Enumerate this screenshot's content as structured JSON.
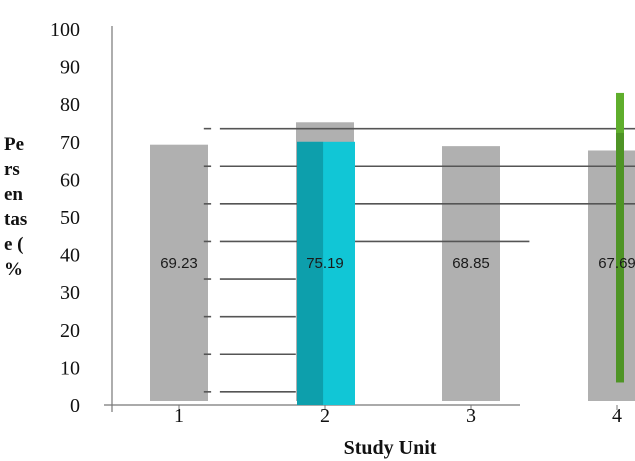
{
  "chart_data": {
    "type": "bar",
    "categories": [
      "1",
      "2",
      "3",
      "4"
    ],
    "values": [
      69.23,
      75.19,
      68.85,
      67.69
    ],
    "value_labels": [
      "69.23",
      "75.19",
      "68.85",
      "67.69"
    ],
    "xlabel": "Study Unit",
    "ylabel_lines": [
      "Pe",
      "rs",
      "en",
      "tas",
      "e (",
      "%"
    ],
    "ylim": [
      0,
      100
    ],
    "yticks": [
      "0",
      "10",
      "20",
      "30",
      "40",
      "50",
      "60",
      "70",
      "80",
      "90",
      "100"
    ],
    "grid": false,
    "bar_color": "#a9a9a9",
    "overlays": {
      "cyan_bar": {
        "category": "2",
        "value": 70,
        "color": "#11c6d6"
      },
      "green_bar": {
        "category": "4",
        "from": 6,
        "to": 83,
        "color": "#5fae2c"
      },
      "horizontal_lines": [
        {
          "y": 73.5,
          "from": 0.28,
          "to": 3.55
        },
        {
          "y": 63.5,
          "from": 0.28,
          "to": 3.55
        },
        {
          "y": 53.5,
          "from": 0.28,
          "to": 3.55
        },
        {
          "y": 43.5,
          "from": 0.28,
          "to": 2.4
        },
        {
          "y": 33.5,
          "from": 0.28,
          "to": 0.8
        },
        {
          "y": 23.5,
          "from": 0.28,
          "to": 0.8
        },
        {
          "y": 13.5,
          "from": 0.28,
          "to": 0.8
        },
        {
          "y": 3.5,
          "from": 0.28,
          "to": 0.8
        }
      ],
      "line_color": "#555555"
    }
  }
}
